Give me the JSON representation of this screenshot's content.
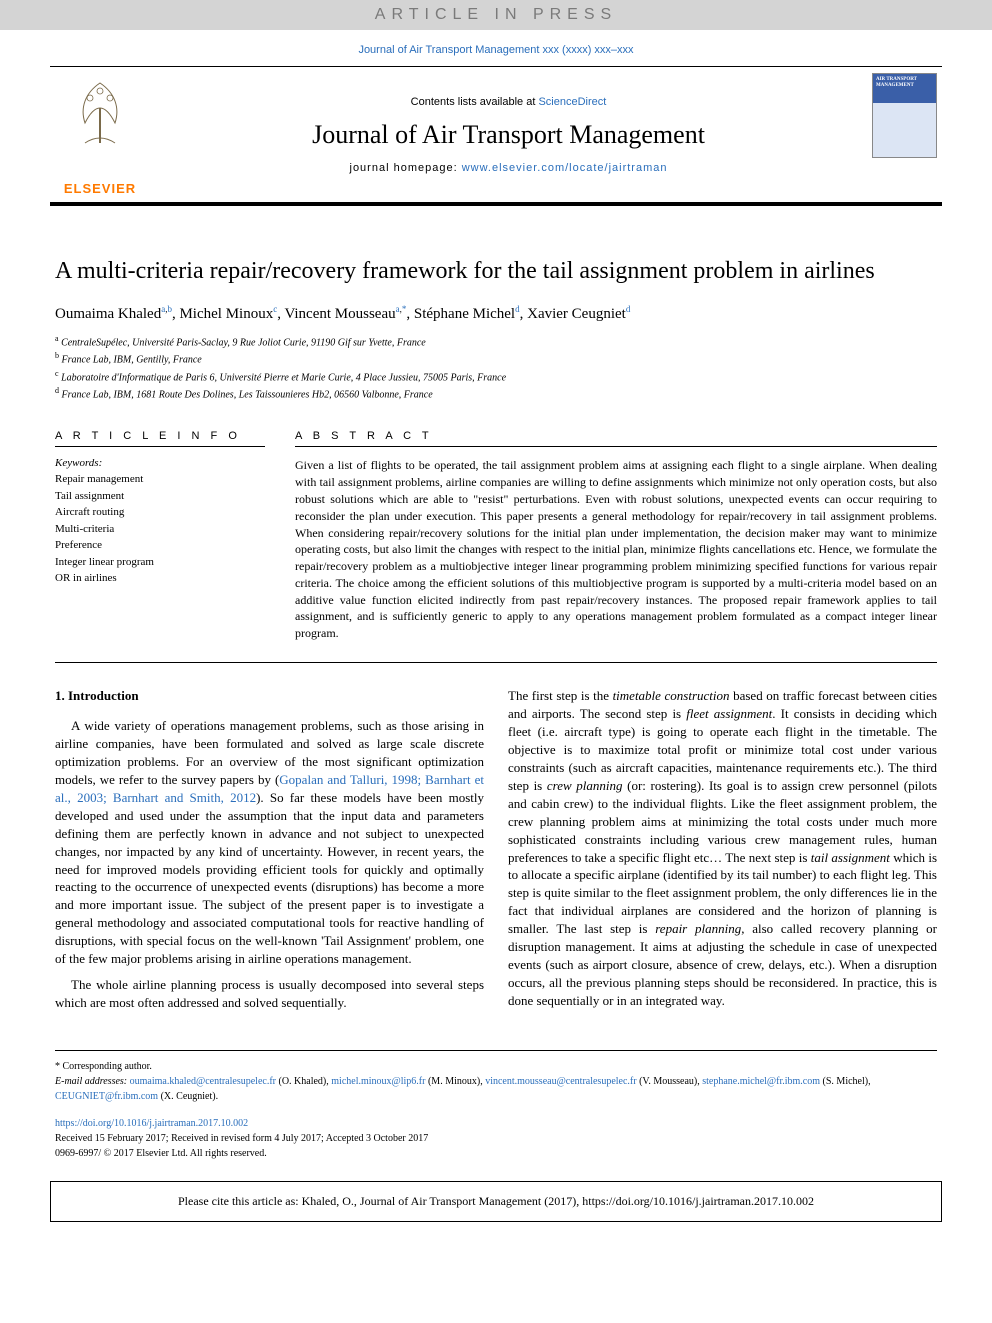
{
  "banner": "ARTICLE IN PRESS",
  "journal_ref": "Journal of Air Transport Management xxx (xxxx) xxx–xxx",
  "masthead": {
    "contents_prefix": "Contents lists available at ",
    "contents_link": "ScienceDirect",
    "journal_name": "Journal of Air Transport Management",
    "homepage_prefix": "journal homepage: ",
    "homepage_url": "www.elsevier.com/locate/jairtraman",
    "elsevier": "ELSEVIER",
    "cover_label": "AIR TRANSPORT MANAGEMENT"
  },
  "title": "A multi-criteria repair/recovery framework for the tail assignment problem in airlines",
  "authors": [
    {
      "name": "Oumaima Khaled",
      "aff": "a,b"
    },
    {
      "name": "Michel Minoux",
      "aff": "c"
    },
    {
      "name": "Vincent Mousseau",
      "aff": "a,*"
    },
    {
      "name": "Stéphane Michel",
      "aff": "d"
    },
    {
      "name": "Xavier Ceugniet",
      "aff": "d"
    }
  ],
  "affiliations": [
    {
      "sup": "a",
      "text": "CentraleSupélec, Université Paris-Saclay, 9 Rue Joliot Curie, 91190 Gif sur Yvette, France"
    },
    {
      "sup": "b",
      "text": "France Lab, IBM, Gentilly, France"
    },
    {
      "sup": "c",
      "text": "Laboratoire d'Informatique de Paris 6, Université Pierre et Marie Curie, 4 Place Jussieu, 75005 Paris, France"
    },
    {
      "sup": "d",
      "text": "France Lab, IBM, 1681 Route Des Dolines, Les Taissounieres Hb2, 06560 Valbonne, France"
    }
  ],
  "article_info": {
    "head": "A R T I C L E  I N F O",
    "kw_label": "Keywords:",
    "keywords": [
      "Repair management",
      "Tail assignment",
      "Aircraft routing",
      "Multi-criteria",
      "Preference",
      "Integer linear program",
      "OR in airlines"
    ]
  },
  "abstract": {
    "head": "A B S T R A C T",
    "text": "Given a list of flights to be operated, the tail assignment problem aims at assigning each flight to a single airplane. When dealing with tail assignment problems, airline companies are willing to define assignments which minimize not only operation costs, but also robust solutions which are able to \"resist\" perturbations. Even with robust solutions, unexpected events can occur requiring to reconsider the plan under execution. This paper presents a general methodology for repair/recovery in tail assignment problems. When considering repair/recovery solutions for the initial plan under implementation, the decision maker may want to minimize operating costs, but also limit the changes with respect to the initial plan, minimize flights cancellations etc. Hence, we formulate the repair/recovery problem as a multiobjective integer linear programming problem minimizing specified functions for various repair criteria. The choice among the efficient solutions of this multiobjective program is supported by a multi-criteria model based on an additive value function elicited indirectly from past repair/recovery instances. The proposed repair framework applies to tail assignment, and is sufficiently generic to apply to any operations management problem formulated as a compact integer linear program."
  },
  "section_head": "1. Introduction",
  "body": {
    "left_p1a": "A wide variety of operations management problems, such as those arising in airline companies, have been formulated and solved as large scale discrete optimization problems. For an overview of the most significant optimization models, we refer to the survey papers by (",
    "left_p1_cite": "Gopalan and Talluri, 1998; Barnhart et al., 2003; Barnhart and Smith, 2012",
    "left_p1b": "). So far these models have been mostly developed and used under the assumption that the input data and parameters defining them are perfectly known in advance and not subject to unexpected changes, nor impacted by any kind of uncertainty. However, in recent years, the need for improved models providing efficient tools for quickly and optimally reacting to the occurrence of unexpected events (disruptions) has become a more and more important issue. The subject of the present paper is to investigate a general methodology and associated computational tools for reactive handling of disruptions, with special focus on the well-known 'Tail Assignment' problem, one of the few major problems arising in airline operations management.",
    "left_p2": "The whole airline planning process is usually decomposed into several steps which are most often addressed and solved sequentially.",
    "right_p1a": "The first step is the ",
    "right_i1": "timetable construction",
    "right_p1b": " based on traffic forecast between cities and airports. The second step is ",
    "right_i2": "fleet assignment",
    "right_p1c": ". It consists in deciding which fleet (i.e. aircraft type) is going to operate each flight in the timetable. The objective is to maximize total profit or minimize total cost under various constraints (such as aircraft capacities, maintenance requirements etc.). The third step is ",
    "right_i3": "crew planning",
    "right_p1d": " (or: rostering). Its goal is to assign crew personnel (pilots and cabin crew) to the individual flights. Like the fleet assignment problem, the crew planning problem aims at minimizing the total costs under much more sophisticated constraints including various crew management rules, human preferences to take a specific flight etc… The next step is ",
    "right_i4": "tail assignment",
    "right_p1e": " which is to allocate a specific airplane (identified by its tail number) to each flight leg. This step is quite similar to the fleet assignment problem, the only differences lie in the fact that individual airplanes are considered and the horizon of planning is smaller. The last step is ",
    "right_i5": "repair planning",
    "right_p1f": ", also called recovery planning or disruption management. It aims at adjusting the schedule in case of unexpected events (such as airport closure, absence of crew, delays, etc.). When a disruption occurs, all the previous planning steps should be reconsidered. In practice, this is done sequentially or in an integrated way."
  },
  "footer": {
    "corresp": "* Corresponding author.",
    "email_label": "E-mail addresses: ",
    "emails": [
      {
        "addr": "oumaima.khaled@centralesupelec.fr",
        "who": "(O. Khaled)"
      },
      {
        "addr": "michel.minoux@lip6.fr",
        "who": "(M. Minoux)"
      },
      {
        "addr": "vincent.mousseau@centralesupelec.fr",
        "who": "(V. Mousseau)"
      },
      {
        "addr": "stephane.michel@fr.ibm.com",
        "who": "(S. Michel)"
      },
      {
        "addr": "CEUGNIET@fr.ibm.com",
        "who": "(X. Ceugniet)"
      }
    ]
  },
  "doi": {
    "url": "https://doi.org/10.1016/j.jairtraman.2017.10.002",
    "received": "Received 15 February 2017; Received in revised form 4 July 2017; Accepted 3 October 2017",
    "issn": "0969-6997/ © 2017 Elsevier Ltd. All rights reserved."
  },
  "cite": "Please cite this article as: Khaled, O., Journal of Air Transport Management (2017), https://doi.org/10.1016/j.jairtraman.2017.10.002"
}
